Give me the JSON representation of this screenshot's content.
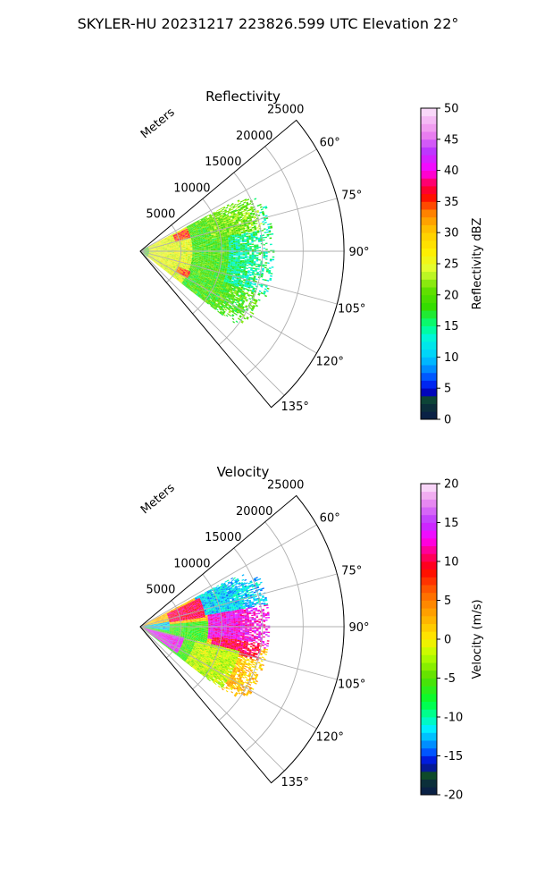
{
  "figure": {
    "suptitle": "SKYLER-HU  20231217  223826.599 UTC Elevation 22°"
  },
  "chart_data": [
    {
      "type": "heatmap",
      "projection": "polar-sector",
      "title": "Reflectivity",
      "radial_label": "Meters",
      "radial_ticks": [
        5000,
        10000,
        15000,
        20000,
        25000
      ],
      "r_range": [
        0,
        25000
      ],
      "theta_range_deg": [
        50,
        140
      ],
      "theta_ticks_deg": [
        60,
        75,
        90,
        105,
        120,
        135
      ],
      "grid": true,
      "data_extent": {
        "theta_deg": [
          62,
          128
        ],
        "r_max_m": 16000
      },
      "colorbar": {
        "label": "Reflectivity dBZ",
        "range": [
          0,
          50
        ],
        "ticks": [
          0,
          5,
          10,
          15,
          20,
          25,
          30,
          35,
          40,
          45,
          50
        ],
        "stops": [
          [
            0,
            "#0a1a4a"
          ],
          [
            2,
            "#0b2f3a"
          ],
          [
            3,
            "#0e4a2a"
          ],
          [
            4.5,
            "#0000c8"
          ],
          [
            6,
            "#0033ff"
          ],
          [
            8,
            "#0088ff"
          ],
          [
            10,
            "#00ccff"
          ],
          [
            13,
            "#00f5dd"
          ],
          [
            15,
            "#00ff88"
          ],
          [
            18,
            "#33dd00"
          ],
          [
            21,
            "#66e000"
          ],
          [
            24,
            "#e0ff33"
          ],
          [
            27,
            "#ffee00"
          ],
          [
            30,
            "#ffcc00"
          ],
          [
            33,
            "#ff8800"
          ],
          [
            36,
            "#ff0000"
          ],
          [
            38,
            "#ff0066"
          ],
          [
            40,
            "#ff00ff"
          ],
          [
            43,
            "#bb33ff"
          ],
          [
            46,
            "#ee88ee"
          ],
          [
            50,
            "#fbe7fb"
          ]
        ]
      },
      "regions": [
        {
          "theta": [
            62,
            128
          ],
          "r": [
            200,
            16000
          ],
          "value": 19
        },
        {
          "theta": [
            70,
            110
          ],
          "r": [
            11000,
            16500
          ],
          "value": 15
        },
        {
          "theta": [
            62,
            80
          ],
          "r": [
            9000,
            15500
          ],
          "value": 21
        },
        {
          "theta": [
            60,
            128
          ],
          "r": [
            1000,
            6500
          ],
          "value": 25
        },
        {
          "theta": [
            64,
            75
          ],
          "r": [
            4500,
            6300
          ],
          "value": 35
        },
        {
          "theta": [
            112,
            120
          ],
          "r": [
            5000,
            6600
          ],
          "value": 34
        }
      ]
    },
    {
      "type": "heatmap",
      "projection": "polar-sector",
      "title": "Velocity",
      "radial_label": "Meters",
      "radial_ticks": [
        5000,
        10000,
        15000,
        20000,
        25000
      ],
      "r_range": [
        0,
        25000
      ],
      "theta_range_deg": [
        50,
        140
      ],
      "theta_ticks_deg": [
        60,
        75,
        90,
        105,
        120,
        135
      ],
      "grid": true,
      "data_extent": {
        "theta_deg": [
          62,
          128
        ],
        "r_max_m": 16000
      },
      "colorbar": {
        "label": "Velocity (m/s)",
        "range": [
          -20,
          20
        ],
        "ticks": [
          -20,
          -15,
          -10,
          -5,
          0,
          5,
          10,
          15,
          20
        ],
        "stops": [
          [
            -20,
            "#0a1a4a"
          ],
          [
            -18.5,
            "#0b2f3a"
          ],
          [
            -17.5,
            "#0e4a2a"
          ],
          [
            -16,
            "#0000cc"
          ],
          [
            -14.5,
            "#0055ff"
          ],
          [
            -13,
            "#00aaff"
          ],
          [
            -11.5,
            "#00eeff"
          ],
          [
            -10,
            "#00ffaa"
          ],
          [
            -8,
            "#00ff33"
          ],
          [
            -5,
            "#55dd00"
          ],
          [
            -2,
            "#bbff00"
          ],
          [
            0,
            "#ffee00"
          ],
          [
            3,
            "#ffaa00"
          ],
          [
            6,
            "#ff6600"
          ],
          [
            9,
            "#ff0000"
          ],
          [
            11,
            "#ff0077"
          ],
          [
            13,
            "#ff00ff"
          ],
          [
            15,
            "#bb33ff"
          ],
          [
            18,
            "#ee99ee"
          ],
          [
            20,
            "#fbe7fb"
          ]
        ]
      },
      "regions": [
        {
          "theta": [
            62,
            128
          ],
          "r": [
            200,
            16000
          ],
          "value": 2
        },
        {
          "theta": [
            62,
            80
          ],
          "r": [
            7500,
            16000
          ],
          "value": -12
        },
        {
          "theta": [
            64,
            82
          ],
          "r": [
            3000,
            8000
          ],
          "value": 10
        },
        {
          "theta": [
            80,
            100
          ],
          "r": [
            8500,
            16000
          ],
          "value": 13
        },
        {
          "theta": [
            98,
            106
          ],
          "r": [
            9000,
            15000
          ],
          "value": 10
        },
        {
          "theta": [
            85,
            128
          ],
          "r": [
            500,
            8500
          ],
          "value": -6
        },
        {
          "theta": [
            104,
            126
          ],
          "r": [
            600,
            5500
          ],
          "value": 14
        },
        {
          "theta": [
            60,
            80
          ],
          "r": [
            500,
            3500
          ],
          "value": 2
        },
        {
          "theta": [
            80,
            98
          ],
          "r": [
            300,
            3500
          ],
          "value": -12
        },
        {
          "theta": [
            104,
            128
          ],
          "r": [
            7000,
            12500
          ],
          "value": -2
        }
      ]
    }
  ]
}
